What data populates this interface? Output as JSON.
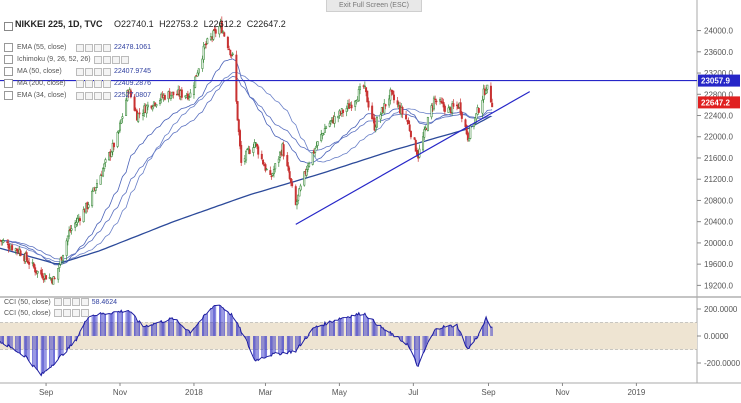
{
  "window": {
    "exit_fullscreen": "Exit Full Screen (ESC)"
  },
  "header": {
    "symbol": "NIKKEI 225, 1D, TVC",
    "open": "O22740.1",
    "high": "H22753.2",
    "low": "L22612.2",
    "close": "C22647.2"
  },
  "indicators": [
    {
      "name": "EMA (55, close)",
      "value": "22478.1061",
      "has_buttons": true
    },
    {
      "name": "Ichimoku (9, 26, 52, 26)",
      "value": "",
      "has_buttons": true
    },
    {
      "name": "MA (50, close)",
      "value": "22407.9745",
      "has_buttons": true
    },
    {
      "name": "MA (200, close)",
      "value": "22409.2876",
      "has_buttons": true
    },
    {
      "name": "EMA (34, close)",
      "value": "22527.0807",
      "has_buttons": true
    }
  ],
  "cci_labels": [
    {
      "name": "CCI (50, close)",
      "value": "58.4624"
    },
    {
      "name": "CCI (50, close)",
      "value": ""
    }
  ],
  "colors": {
    "up_candle": "#3a8a3a",
    "down_candle": "#c83232",
    "trendline": "#2626c8",
    "ma_line": "#2c4a9a",
    "cci_bar": "#3232c8",
    "cci_band": "#eee4d2",
    "price_label_bg": "#e02020",
    "resistance_label_bg": "#2626c8"
  },
  "chart_data": {
    "type": "candlestick",
    "price_axis": {
      "ticks": [
        24000,
        23600,
        23200,
        22800,
        22400,
        22000,
        21600,
        21200,
        20800,
        20400,
        20000,
        19600,
        19200
      ],
      "tick_labels": [
        "24000.0",
        "23600.0",
        "23200.0",
        "22800.0",
        "22400.0",
        "22000.0",
        "21600.0",
        "21200.0",
        "20800.0",
        "20400.0",
        "20000.0",
        "19600.0",
        "19200.0"
      ],
      "range": [
        19000,
        24350
      ]
    },
    "time_axis": {
      "labels": [
        "Sep",
        "Nov",
        "2018",
        "Mar",
        "May",
        "Jul",
        "Sep",
        "Nov",
        "2019"
      ],
      "label_dates": [
        "2017-09-01",
        "2017-11-01",
        "2018-01-01",
        "2018-03-01",
        "2018-05-01",
        "2018-07-01",
        "2018-09-01",
        "2018-11-01",
        "2019-01-01"
      ],
      "range": [
        "2017-07-25",
        "2019-02-20"
      ]
    },
    "last_price": {
      "label": "22647.2",
      "value": 22647.2
    },
    "resistance": {
      "label": "23057.9",
      "value": 23057.9
    },
    "trendline": {
      "start": [
        "2018-03-26",
        20350
      ],
      "end": [
        "2018-10-05",
        22850
      ]
    },
    "ohlc_keypoints": [
      [
        "2017-07-25",
        20050
      ],
      [
        "2017-08-10",
        19850
      ],
      [
        "2017-08-25",
        19450
      ],
      [
        "2017-09-08",
        19300
      ],
      [
        "2017-09-20",
        20200
      ],
      [
        "2017-10-05",
        20700
      ],
      [
        "2017-10-20",
        21500
      ],
      [
        "2017-10-30",
        22000
      ],
      [
        "2017-11-08",
        22900
      ],
      [
        "2017-11-15",
        22400
      ],
      [
        "2017-11-25",
        22600
      ],
      [
        "2017-12-10",
        22800
      ],
      [
        "2017-12-29",
        22800
      ],
      [
        "2018-01-10",
        23700
      ],
      [
        "2018-01-23",
        24100
      ],
      [
        "2018-02-02",
        23500
      ],
      [
        "2018-02-09",
        21500
      ],
      [
        "2018-02-20",
        21900
      ],
      [
        "2018-03-05",
        21200
      ],
      [
        "2018-03-15",
        21800
      ],
      [
        "2018-03-26",
        20700
      ],
      [
        "2018-04-05",
        21500
      ],
      [
        "2018-04-20",
        22200
      ],
      [
        "2018-05-10",
        22600
      ],
      [
        "2018-05-21",
        22950
      ],
      [
        "2018-05-30",
        22200
      ],
      [
        "2018-06-12",
        22800
      ],
      [
        "2018-06-26",
        22300
      ],
      [
        "2018-07-05",
        21650
      ],
      [
        "2018-07-18",
        22700
      ],
      [
        "2018-07-30",
        22500
      ],
      [
        "2018-08-08",
        22600
      ],
      [
        "2018-08-15",
        22000
      ],
      [
        "2018-08-22",
        22400
      ],
      [
        "2018-08-30",
        22950
      ],
      [
        "2018-09-04",
        22647
      ]
    ],
    "ma200_keypoints": [
      [
        "2017-07-25",
        19900
      ],
      [
        "2017-09-10",
        19600
      ],
      [
        "2017-10-15",
        19850
      ],
      [
        "2017-12-15",
        20400
      ],
      [
        "2018-02-15",
        20900
      ],
      [
        "2018-04-15",
        21300
      ],
      [
        "2018-06-15",
        21750
      ],
      [
        "2018-08-15",
        22150
      ],
      [
        "2018-09-04",
        22400
      ]
    ],
    "cci_panel": {
      "ticks": [
        200,
        0,
        -200
      ],
      "tick_labels": [
        "200.0000",
        "0.0000",
        "-200.0000"
      ],
      "band": [
        -100,
        100
      ],
      "last_value": 58.4624,
      "keypoints": [
        [
          "2017-07-25",
          -40
        ],
        [
          "2017-08-15",
          -150
        ],
        [
          "2017-08-28",
          -290
        ],
        [
          "2017-09-10",
          -180
        ],
        [
          "2017-09-25",
          -40
        ],
        [
          "2017-10-06",
          150
        ],
        [
          "2017-11-08",
          190
        ],
        [
          "2017-11-20",
          70
        ],
        [
          "2017-12-15",
          130
        ],
        [
          "2017-12-29",
          30
        ],
        [
          "2018-01-10",
          150
        ],
        [
          "2018-01-20",
          245
        ],
        [
          "2018-02-02",
          150
        ],
        [
          "2018-02-13",
          -30
        ],
        [
          "2018-02-20",
          -180
        ],
        [
          "2018-03-05",
          -140
        ],
        [
          "2018-03-26",
          -110
        ],
        [
          "2018-04-10",
          60
        ],
        [
          "2018-05-01",
          130
        ],
        [
          "2018-05-21",
          170
        ],
        [
          "2018-06-05",
          60
        ],
        [
          "2018-06-26",
          -60
        ],
        [
          "2018-07-05",
          -230
        ],
        [
          "2018-07-12",
          -70
        ],
        [
          "2018-07-20",
          60
        ],
        [
          "2018-08-06",
          80
        ],
        [
          "2018-08-15",
          -100
        ],
        [
          "2018-08-24",
          10
        ],
        [
          "2018-08-30",
          130
        ],
        [
          "2018-09-04",
          58
        ]
      ]
    }
  }
}
